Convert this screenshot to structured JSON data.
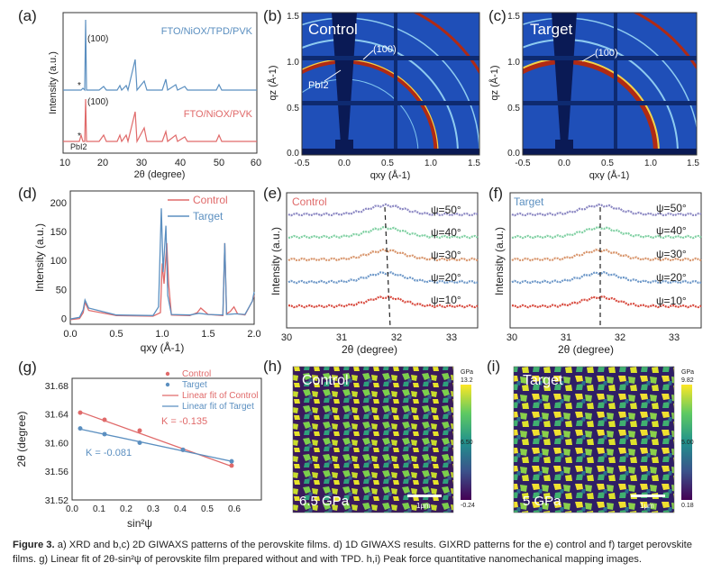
{
  "figure": {
    "caption_label": "Figure 3.",
    "caption_text": "a) XRD and b,c) 2D GIWAXS patterns of the perovskite films. d) 1D GIWAXS results. GIXRD patterns for the e) control and f) target perovskite films. g) Linear fit of 2θ-sin²ψ of perovskite film prepared without and with TPD. h,i) Peak force quantitative nanomechanical mapping images."
  },
  "panel_labels": {
    "a": "(a)",
    "b": "(b)",
    "c": "(c)",
    "d": "(d)",
    "e": "(e)",
    "f": "(f)",
    "g": "(g)",
    "h": "(h)",
    "i": "(i)"
  },
  "colors": {
    "blue": "#5b8fc0",
    "red": "#e06a6a"
  },
  "panel_a": {
    "xlabel": "2θ (degree)",
    "ylabel": "Intensity (a.u.)",
    "xticks": [
      "10",
      "20",
      "30",
      "40",
      "50",
      "60"
    ],
    "legend_top": "FTO/NiOX/TPD/PVK",
    "legend_bottom": "FTO/NiOX/PVK",
    "peak_label_top": "(100)",
    "peak_label_bottom": "(100)",
    "star_top": "*",
    "star_bottom": "*",
    "pbi2_label": "PbI2"
  },
  "panel_b": {
    "title": "Control",
    "peak_label": "(100)",
    "pbi2_label": "PbI2",
    "xlabel": "qxy (Å-1)",
    "ylabel": "qz (Å-1)",
    "xticks": [
      "-0.5",
      "0.0",
      "0.5",
      "1.0",
      "1.5"
    ],
    "yticks": [
      "0.0",
      "0.5",
      "1.0",
      "1.5"
    ]
  },
  "panel_c": {
    "title": "Target",
    "peak_label": "(100)",
    "xlabel": "qxy (Å-1)",
    "ylabel": "qz (Å-1)",
    "xticks": [
      "-0.5",
      "0.0",
      "0.5",
      "1.0",
      "1.5"
    ],
    "yticks": [
      "0.0",
      "0.5",
      "1.0",
      "1.5"
    ]
  },
  "panel_e": {
    "title": "Control",
    "xlabel": "2θ (degree)",
    "ylabel": "Intensity (a.u.)",
    "xticks": [
      "30",
      "31",
      "32",
      "33"
    ],
    "psi_labels": [
      "ψ=50°",
      "ψ=40°",
      "ψ=30°",
      "ψ=20°",
      "ψ=10°"
    ]
  },
  "panel_f": {
    "title": "Target",
    "xlabel": "2θ (degree)",
    "ylabel": "Intensity (a.u.)",
    "xticks": [
      "30",
      "31",
      "32",
      "33"
    ],
    "psi_labels": [
      "ψ=50°",
      "ψ=40°",
      "ψ=30°",
      "ψ=20°",
      "ψ=10°"
    ]
  },
  "panel_h": {
    "title": "Control",
    "value_label": "6.5 GPa",
    "scale_label": "1μm",
    "cb_unit": "GPa",
    "cb_max": "13.2",
    "cb_mid": "6.50",
    "cb_min": "-0.24"
  },
  "panel_i": {
    "title": "Target",
    "value_label": "5 GPa",
    "scale_label": "1μm",
    "cb_unit": "GPa",
    "cb_max": "9.82",
    "cb_mid": "5.00",
    "cb_min": "0.18"
  },
  "chart_data": [
    {
      "id": "d",
      "type": "line",
      "title": "",
      "xlabel": "qxy (Å-1)",
      "ylabel": "Intensity (a.u.)",
      "xlim": [
        0,
        2.0
      ],
      "ylim": [
        -10,
        220
      ],
      "xticks": [
        "0.0",
        "0.5",
        "1.0",
        "1.5",
        "2.0"
      ],
      "yticks": [
        "0",
        "50",
        "100",
        "150",
        "200"
      ],
      "legend_position": "top-right",
      "series": [
        {
          "name": "Control",
          "color": "#e06a6a",
          "x": [
            0.0,
            0.1,
            0.14,
            0.16,
            0.2,
            0.5,
            0.9,
            0.98,
            1.0,
            1.02,
            1.05,
            1.07,
            1.1,
            1.3,
            1.38,
            1.42,
            1.5,
            1.66,
            1.68,
            1.7,
            1.74,
            1.78,
            1.82,
            1.9,
            1.98,
            2.0
          ],
          "y": [
            -2,
            0,
            10,
            28,
            14,
            5,
            4,
            10,
            95,
            60,
            130,
            60,
            6,
            5,
            10,
            18,
            7,
            5,
            130,
            8,
            12,
            20,
            8,
            6,
            30,
            40
          ]
        },
        {
          "name": "Target",
          "color": "#5b8fc0",
          "x": [
            0.0,
            0.1,
            0.14,
            0.16,
            0.2,
            0.5,
            0.9,
            0.96,
            0.99,
            1.01,
            1.04,
            1.06,
            1.1,
            1.3,
            1.4,
            1.5,
            1.66,
            1.68,
            1.7,
            1.8,
            1.9,
            1.98,
            2.0
          ],
          "y": [
            -1,
            2,
            15,
            32,
            18,
            6,
            5,
            20,
            190,
            80,
            160,
            40,
            7,
            6,
            9,
            7,
            6,
            130,
            7,
            8,
            7,
            30,
            46
          ]
        }
      ]
    },
    {
      "id": "g",
      "type": "scatter",
      "title": "",
      "xlabel": "sin²ψ",
      "ylabel": "2θ (degree)",
      "xlim": [
        0,
        0.7
      ],
      "ylim": [
        31.52,
        31.69
      ],
      "xticks": [
        "0.0",
        "0.1",
        "0.2",
        "0.3",
        "0.4",
        "0.5",
        "0.6"
      ],
      "yticks": [
        "31.52",
        "31.56",
        "31.60",
        "31.64",
        "31.68"
      ],
      "legend_position": "top-right",
      "annotations": [
        "K = -0.135",
        "K = -0.081"
      ],
      "series": [
        {
          "name": "Control",
          "color": "#e06a6a",
          "x": [
            0.03,
            0.12,
            0.25,
            0.41,
            0.59
          ],
          "y": [
            31.642,
            31.632,
            31.617,
            31.59,
            31.568
          ],
          "fit_name": "Linear fit of Control",
          "fit": [
            [
              0.03,
              31.643
            ],
            [
              0.59,
              31.567
            ]
          ]
        },
        {
          "name": "Target",
          "color": "#5b8fc0",
          "x": [
            0.03,
            0.12,
            0.25,
            0.41,
            0.59
          ],
          "y": [
            31.62,
            31.612,
            31.6,
            31.59,
            31.574
          ],
          "fit_name": "Linear fit of Target",
          "fit": [
            [
              0.03,
              31.619
            ],
            [
              0.59,
              31.574
            ]
          ]
        }
      ]
    }
  ]
}
